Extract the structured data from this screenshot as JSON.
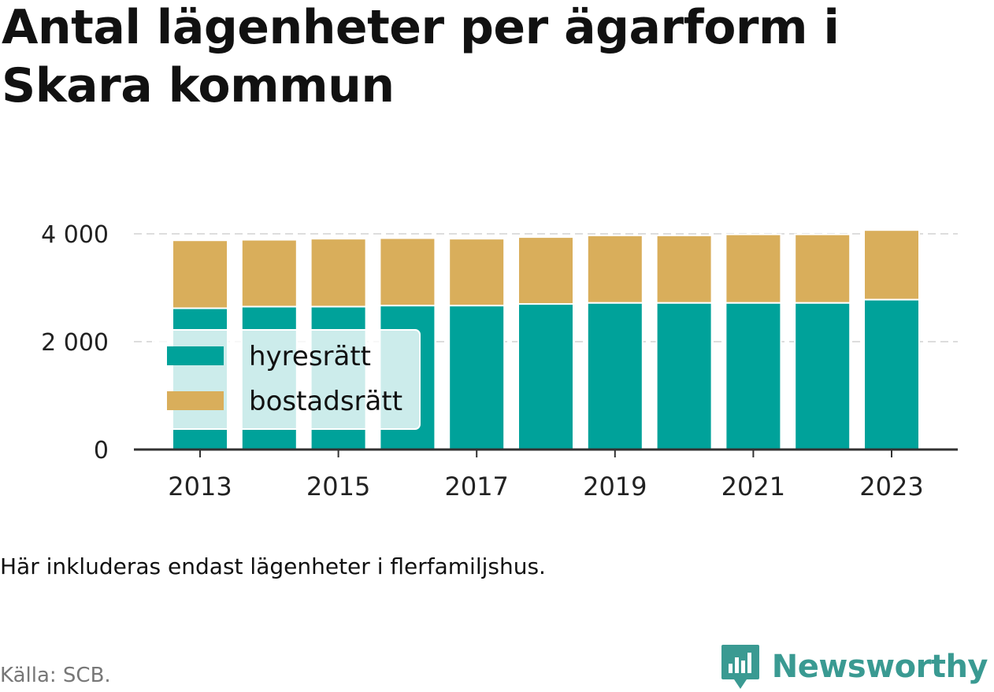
{
  "title": "Antal lägenheter per ägarform i Skara kommun",
  "note": "Här inkluderas endast lägenheter i flerfamiljshus.",
  "source": "Källa: SCB.",
  "brand": {
    "name": "Newsworthy",
    "icon": "newsworthy-logo-icon",
    "color": "#3a9a92"
  },
  "colors": {
    "hyresratt": "#00a29a",
    "bostadsratt": "#d9ae5b",
    "axis": "#333333",
    "grid": "#dddddd"
  },
  "chart_data": {
    "type": "bar",
    "stacked": true,
    "categories": [
      "2013",
      "2014",
      "2015",
      "2016",
      "2017",
      "2018",
      "2019",
      "2020",
      "2021",
      "2022",
      "2023"
    ],
    "series": [
      {
        "name": "hyresrätt",
        "color": "#00a29a",
        "values": [
          2620,
          2650,
          2650,
          2670,
          2670,
          2700,
          2720,
          2720,
          2720,
          2720,
          2780
        ]
      },
      {
        "name": "bostadsrätt",
        "color": "#d9ae5b",
        "values": [
          1260,
          1240,
          1260,
          1250,
          1240,
          1240,
          1250,
          1250,
          1270,
          1270,
          1290
        ]
      }
    ],
    "ylim": [
      0,
      4000
    ],
    "yticks": [
      0,
      2000,
      4000
    ],
    "ytick_labels": [
      "0",
      "2 000",
      "4 000"
    ],
    "xtick_labels": [
      "2013",
      "2015",
      "2017",
      "2019",
      "2021",
      "2023"
    ],
    "grid": true,
    "legend": "inside-left"
  }
}
